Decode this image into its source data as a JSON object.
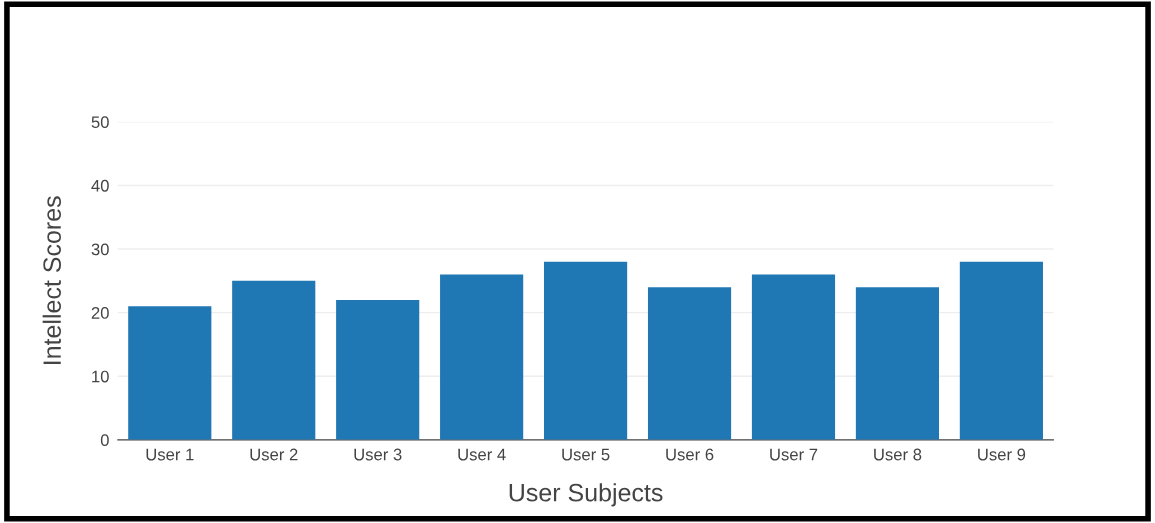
{
  "chart_data": {
    "type": "bar",
    "xlabel": "User Subjects",
    "ylabel": "Intellect Scores",
    "categories": [
      "User 1",
      "User 2",
      "User 3",
      "User 4",
      "User 5",
      "User 6",
      "User 7",
      "User 8",
      "User 9"
    ],
    "values": [
      21,
      25,
      22,
      26,
      28,
      24,
      26,
      24,
      28
    ],
    "color": "#1f77b4",
    "ylim": [
      0,
      50
    ],
    "yticks": [
      0,
      10,
      20,
      30,
      40,
      50
    ],
    "grid": "y"
  }
}
